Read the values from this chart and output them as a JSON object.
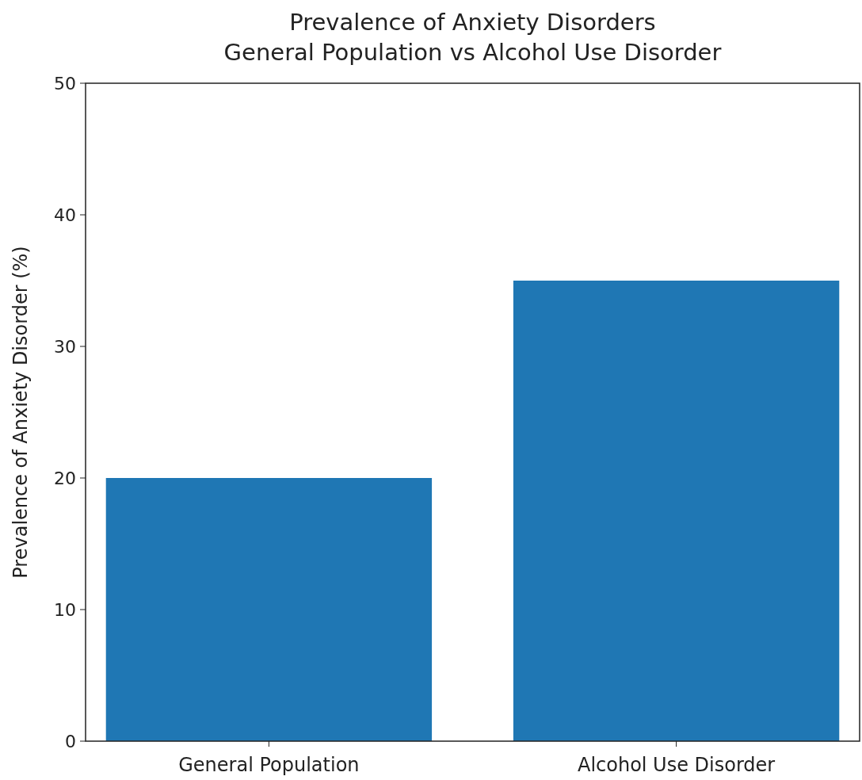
{
  "chart_data": {
    "type": "bar",
    "title": "Prevalence of Anxiety Disorders\nGeneral Population vs Alcohol Use Disorder",
    "ylabel": "Prevalence of Anxiety Disorder (%)",
    "categories": [
      "General Population",
      "Alcohol Use Disorder"
    ],
    "values": [
      20,
      35
    ],
    "color": "#1f77b4",
    "ylim": [
      0,
      50
    ],
    "yticks": [
      0,
      10,
      20,
      30,
      40,
      50
    ],
    "grid": false
  }
}
